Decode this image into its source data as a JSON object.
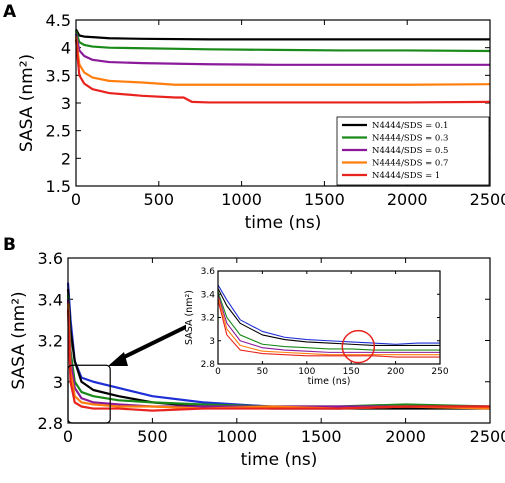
{
  "chart_data": [
    {
      "panel": "A",
      "type": "line",
      "xlabel": "time (ns)",
      "ylabel": "SASA (nm²)",
      "xlim": [
        0,
        2500
      ],
      "ylim": [
        1.5,
        4.5
      ],
      "xticks": [
        "0",
        "500",
        "1000",
        "1500",
        "2000",
        "2500"
      ],
      "yticks": [
        "1.5",
        "2",
        "2.5",
        "3",
        "3.5",
        "4",
        "4.5"
      ],
      "legend_position": "lower-right",
      "series": [
        {
          "name": "N4444/SDS = 0.1",
          "color": "#000000",
          "x": [
            0,
            20,
            50,
            100,
            200,
            400,
            800,
            1200,
            1600,
            2000,
            2500
          ],
          "y": [
            4.33,
            4.22,
            4.2,
            4.19,
            4.17,
            4.16,
            4.15,
            4.15,
            4.15,
            4.15,
            4.15
          ]
        },
        {
          "name": "N4444/SDS = 0.3",
          "color": "#1a8a1a",
          "x": [
            0,
            20,
            50,
            100,
            200,
            400,
            800,
            1200,
            1600,
            2000,
            2500
          ],
          "y": [
            4.3,
            4.1,
            4.05,
            4.02,
            4.0,
            3.99,
            3.97,
            3.96,
            3.95,
            3.95,
            3.94
          ]
        },
        {
          "name": "N4444/SDS = 0.5",
          "color": "#8b1a9b",
          "x": [
            0,
            20,
            50,
            100,
            200,
            400,
            800,
            1200,
            1600,
            2000,
            2500
          ],
          "y": [
            4.25,
            3.95,
            3.85,
            3.78,
            3.74,
            3.72,
            3.7,
            3.69,
            3.69,
            3.69,
            3.69
          ]
        },
        {
          "name": "N4444/SDS = 0.7",
          "color": "#ff7f0e",
          "x": [
            0,
            20,
            50,
            100,
            200,
            400,
            600,
            800,
            1200,
            1600,
            2000,
            2500
          ],
          "y": [
            4.2,
            3.7,
            3.55,
            3.46,
            3.4,
            3.37,
            3.33,
            3.33,
            3.33,
            3.33,
            3.33,
            3.34
          ]
        },
        {
          "name": "N4444/SDS = 1",
          "color": "#e8231e",
          "x": [
            0,
            20,
            50,
            100,
            200,
            400,
            600,
            650,
            700,
            800,
            1200,
            1600,
            2000,
            2500
          ],
          "y": [
            4.15,
            3.5,
            3.35,
            3.25,
            3.18,
            3.13,
            3.1,
            3.1,
            3.02,
            3.01,
            3.01,
            3.01,
            3.01,
            3.02
          ]
        }
      ]
    },
    {
      "panel": "B",
      "type": "line",
      "xlabel": "time (ns)",
      "ylabel": "SASA (nm²)",
      "xlim": [
        0,
        2500
      ],
      "ylim": [
        2.8,
        3.6
      ],
      "xticks": [
        "0",
        "500",
        "1000",
        "1500",
        "2000",
        "2500"
      ],
      "yticks": [
        "2.8",
        "3",
        "3.2",
        "3.4",
        "3.6"
      ],
      "series": [
        {
          "color": "#1f2fd6",
          "x": [
            0,
            15,
            40,
            80,
            150,
            300,
            500,
            800,
            1200,
            1600,
            2000,
            2500
          ],
          "y": [
            3.48,
            3.3,
            3.1,
            3.02,
            3.0,
            2.97,
            2.93,
            2.9,
            2.88,
            2.87,
            2.88,
            2.87
          ]
        },
        {
          "color": "#000000",
          "x": [
            0,
            15,
            40,
            80,
            150,
            300,
            500,
            800,
            1200,
            1600,
            2000,
            2500
          ],
          "y": [
            3.45,
            3.25,
            3.1,
            3.0,
            2.96,
            2.93,
            2.9,
            2.88,
            2.87,
            2.87,
            2.87,
            2.87
          ]
        },
        {
          "color": "#1a8a1a",
          "x": [
            0,
            15,
            40,
            80,
            150,
            300,
            500,
            800,
            1200,
            1600,
            2000,
            2500
          ],
          "y": [
            3.42,
            3.15,
            3.0,
            2.95,
            2.93,
            2.91,
            2.9,
            2.89,
            2.88,
            2.88,
            2.89,
            2.88
          ]
        },
        {
          "color": "#8b1a9b",
          "x": [
            0,
            15,
            40,
            80,
            150,
            300,
            500,
            800,
            1200,
            1600,
            2000,
            2500
          ],
          "y": [
            3.4,
            3.1,
            2.97,
            2.92,
            2.9,
            2.89,
            2.88,
            2.88,
            2.88,
            2.88,
            2.88,
            2.88
          ]
        },
        {
          "color": "#ff7f0e",
          "x": [
            0,
            15,
            40,
            80,
            150,
            300,
            500,
            800,
            1200,
            1600,
            2000,
            2500
          ],
          "y": [
            3.38,
            3.05,
            2.93,
            2.9,
            2.89,
            2.88,
            2.88,
            2.87,
            2.88,
            2.87,
            2.88,
            2.87
          ]
        },
        {
          "color": "#e8231e",
          "x": [
            0,
            15,
            40,
            80,
            150,
            300,
            500,
            800,
            1200,
            1600,
            2000,
            2500
          ],
          "y": [
            3.35,
            3.0,
            2.9,
            2.88,
            2.87,
            2.87,
            2.86,
            2.87,
            2.87,
            2.87,
            2.88,
            2.88
          ]
        }
      ],
      "highlight_box_x": [
        0,
        250
      ],
      "highlight_box_y": [
        2.8,
        3.08
      ]
    },
    {
      "panel": "B-inset",
      "type": "line",
      "xlabel": "time (ns)",
      "ylabel": "SASA (nm²)",
      "xlim": [
        0,
        250
      ],
      "ylim": [
        2.8,
        3.6
      ],
      "xticks": [
        "0",
        "50",
        "100",
        "150",
        "200",
        "250"
      ],
      "yticks": [
        "2.8",
        "3",
        "3.2",
        "3.4",
        "3.6"
      ],
      "circle_center": [
        158,
        2.95
      ],
      "series": [
        {
          "color": "#1f2fd6",
          "x": [
            0,
            10,
            25,
            50,
            75,
            100,
            125,
            150,
            175,
            200,
            225,
            250
          ],
          "y": [
            3.48,
            3.35,
            3.18,
            3.08,
            3.03,
            3.01,
            3.0,
            2.99,
            2.98,
            2.97,
            2.98,
            2.98
          ]
        },
        {
          "color": "#000000",
          "x": [
            0,
            10,
            25,
            50,
            75,
            100,
            125,
            150,
            175,
            200,
            225,
            250
          ],
          "y": [
            3.45,
            3.3,
            3.15,
            3.05,
            3.01,
            2.99,
            2.98,
            2.97,
            2.96,
            2.96,
            2.96,
            2.96
          ]
        },
        {
          "color": "#1a8a1a",
          "x": [
            0,
            10,
            25,
            50,
            75,
            100,
            125,
            150,
            175,
            200,
            225,
            250
          ],
          "y": [
            3.42,
            3.2,
            3.05,
            2.97,
            2.95,
            2.94,
            2.93,
            2.93,
            2.92,
            2.92,
            2.92,
            2.92
          ]
        },
        {
          "color": "#8b1a9b",
          "x": [
            0,
            10,
            25,
            50,
            75,
            100,
            125,
            150,
            175,
            200,
            225,
            250
          ],
          "y": [
            3.4,
            3.15,
            3.0,
            2.94,
            2.92,
            2.91,
            2.9,
            2.9,
            2.9,
            2.9,
            2.9,
            2.9
          ]
        },
        {
          "color": "#ff7f0e",
          "x": [
            0,
            10,
            25,
            50,
            75,
            100,
            125,
            150,
            175,
            200,
            225,
            250
          ],
          "y": [
            3.38,
            3.1,
            2.96,
            2.91,
            2.9,
            2.89,
            2.88,
            2.88,
            2.88,
            2.88,
            2.88,
            2.88
          ]
        },
        {
          "color": "#e8231e",
          "x": [
            0,
            10,
            25,
            50,
            75,
            100,
            125,
            150,
            175,
            200,
            225,
            250
          ],
          "y": [
            3.35,
            3.05,
            2.92,
            2.89,
            2.88,
            2.87,
            2.87,
            2.87,
            2.87,
            2.86,
            2.86,
            2.86
          ]
        }
      ]
    }
  ],
  "panels": {
    "a_label": "A",
    "b_label": "B"
  }
}
